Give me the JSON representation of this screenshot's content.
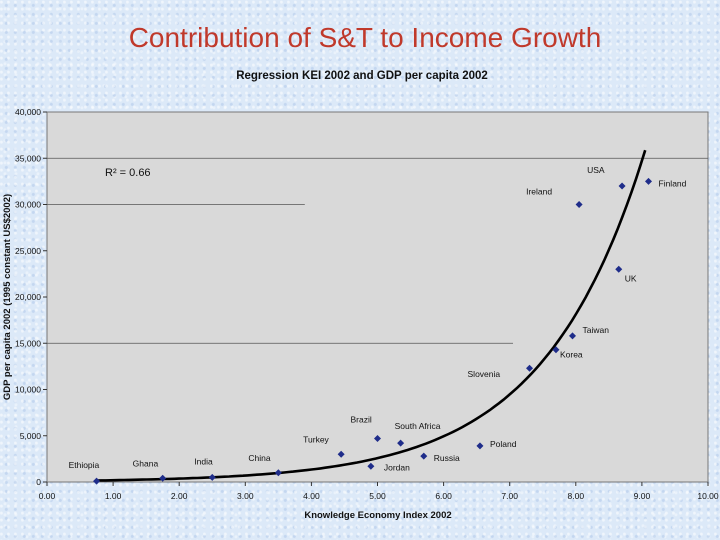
{
  "slide": {
    "title": "Contribution of S&T to Income Growth"
  },
  "colors": {
    "title": "#c0392b",
    "plot_bg": "#d9d9d9",
    "marker": "#1f2d8a",
    "curve": "#000000"
  },
  "chart_data": {
    "type": "scatter",
    "title": "Regression KEI 2002 and GDP per capita 2002",
    "xlabel": "Knowledge Economy Index 2002",
    "ylabel": "GDP per capita 2002 (1995 constant US$2002)",
    "xlim": [
      0,
      10
    ],
    "ylim": [
      0,
      40000
    ],
    "x_ticks": [
      "0.00",
      "1.00",
      "2.00",
      "3.00",
      "4.00",
      "5.00",
      "6.00",
      "7.00",
      "8.00",
      "9.00",
      "10.00"
    ],
    "y_ticks": [
      "0",
      "5,000",
      "10,000",
      "15,000",
      "20,000",
      "25,000",
      "30,000",
      "35,000",
      "40,000"
    ],
    "annotation": "R² = 0.66",
    "points": [
      {
        "label": "Ethiopia",
        "x": 0.75,
        "y": 100
      },
      {
        "label": "Ghana",
        "x": 1.75,
        "y": 400
      },
      {
        "label": "India",
        "x": 2.5,
        "y": 500
      },
      {
        "label": "China",
        "x": 3.5,
        "y": 1000
      },
      {
        "label": "Turkey",
        "x": 4.45,
        "y": 3000
      },
      {
        "label": "Brazil",
        "x": 5.0,
        "y": 4700
      },
      {
        "label": "Jordan",
        "x": 4.9,
        "y": 1700
      },
      {
        "label": "South Africa",
        "x": 5.35,
        "y": 4200
      },
      {
        "label": "Russia",
        "x": 5.7,
        "y": 2800
      },
      {
        "label": "Poland",
        "x": 6.55,
        "y": 3900
      },
      {
        "label": "Slovenia",
        "x": 7.3,
        "y": 12300
      },
      {
        "label": "Korea",
        "x": 7.7,
        "y": 14300
      },
      {
        "label": "Taiwan",
        "x": 7.95,
        "y": 15800
      },
      {
        "label": "Ireland",
        "x": 8.05,
        "y": 30000
      },
      {
        "label": "UK",
        "x": 8.65,
        "y": 23000
      },
      {
        "label": "USA",
        "x": 8.7,
        "y": 32000
      },
      {
        "label": "Finland",
        "x": 9.1,
        "y": 32500
      }
    ],
    "trend": {
      "type": "exponential",
      "a": 100,
      "b": 0.65,
      "x_start": 0.75,
      "x_end": 9.05
    },
    "grid": true
  }
}
